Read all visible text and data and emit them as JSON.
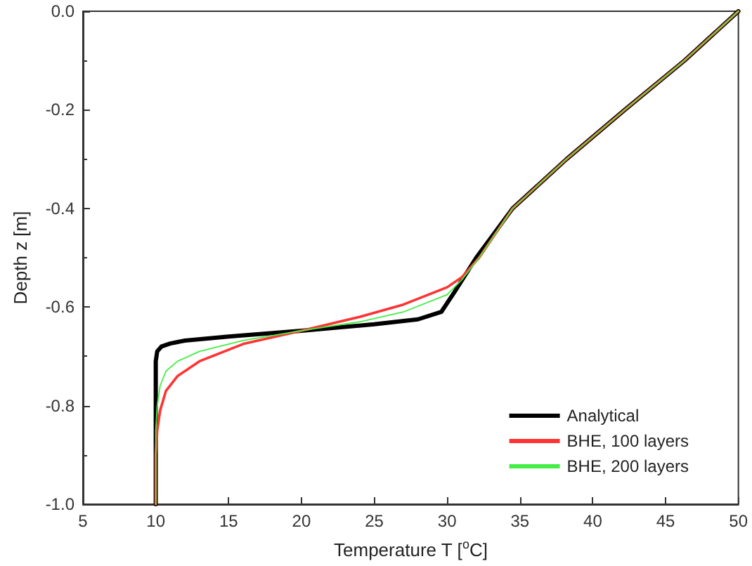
{
  "chart_data": {
    "type": "line",
    "xlabel": "Temperature T [$^{o}$C]",
    "ylabel": "Depth z [m]",
    "xlim": [
      5,
      50
    ],
    "xticks": [
      5,
      10,
      15,
      20,
      25,
      30,
      35,
      40,
      45,
      50
    ],
    "ylim": [
      -1,
      0
    ],
    "yticks": [
      {
        "value": -1,
        "label": "-1.0"
      },
      -0.8,
      -0.6,
      -0.4,
      -0.2,
      {
        "value": 0,
        "label": "0.0"
      }
    ],
    "grid": false,
    "legend": "bottom right",
    "line_style": "solid",
    "marker": "none",
    "series": [
      {
        "name": "Analytical",
        "color": "#000000",
        "x": [
          50,
          46.3,
          42.2,
          38.2,
          34.5,
          32,
          30.5,
          29.6,
          28,
          25,
          20,
          15,
          12,
          11,
          10.4,
          10.1,
          10,
          10
        ],
        "values": [
          0,
          -0.1,
          -0.2,
          -0.3,
          -0.4,
          -0.5,
          -0.57,
          -0.61,
          -0.625,
          -0.635,
          -0.648,
          -0.66,
          -0.668,
          -0.674,
          -0.68,
          -0.69,
          -0.71,
          -1
        ]
      },
      {
        "name": "BHE, 100 layers",
        "color": "#ff3333",
        "x": [
          50,
          46.3,
          42.2,
          38.2,
          34.5,
          32.2,
          31,
          30,
          27,
          24,
          20,
          16,
          13,
          11.5,
          10.7,
          10.3,
          10.1,
          10,
          10
        ],
        "values": [
          0,
          -0.1,
          -0.2,
          -0.3,
          -0.4,
          -0.5,
          -0.54,
          -0.56,
          -0.595,
          -0.62,
          -0.648,
          -0.675,
          -0.71,
          -0.74,
          -0.77,
          -0.81,
          -0.85,
          -0.9,
          -1
        ]
      },
      {
        "name": "BHE, 200 layers",
        "color": "#44ee44",
        "x": [
          50,
          46.3,
          42.2,
          38.2,
          34.5,
          32.2,
          31,
          30,
          27,
          24,
          20,
          16,
          13,
          11.5,
          10.7,
          10.3,
          10.1,
          10,
          10
        ],
        "values": [
          0,
          -0.1,
          -0.2,
          -0.3,
          -0.4,
          -0.5,
          -0.545,
          -0.575,
          -0.61,
          -0.63,
          -0.648,
          -0.668,
          -0.69,
          -0.71,
          -0.73,
          -0.76,
          -0.8,
          -0.85,
          -1
        ]
      }
    ]
  }
}
